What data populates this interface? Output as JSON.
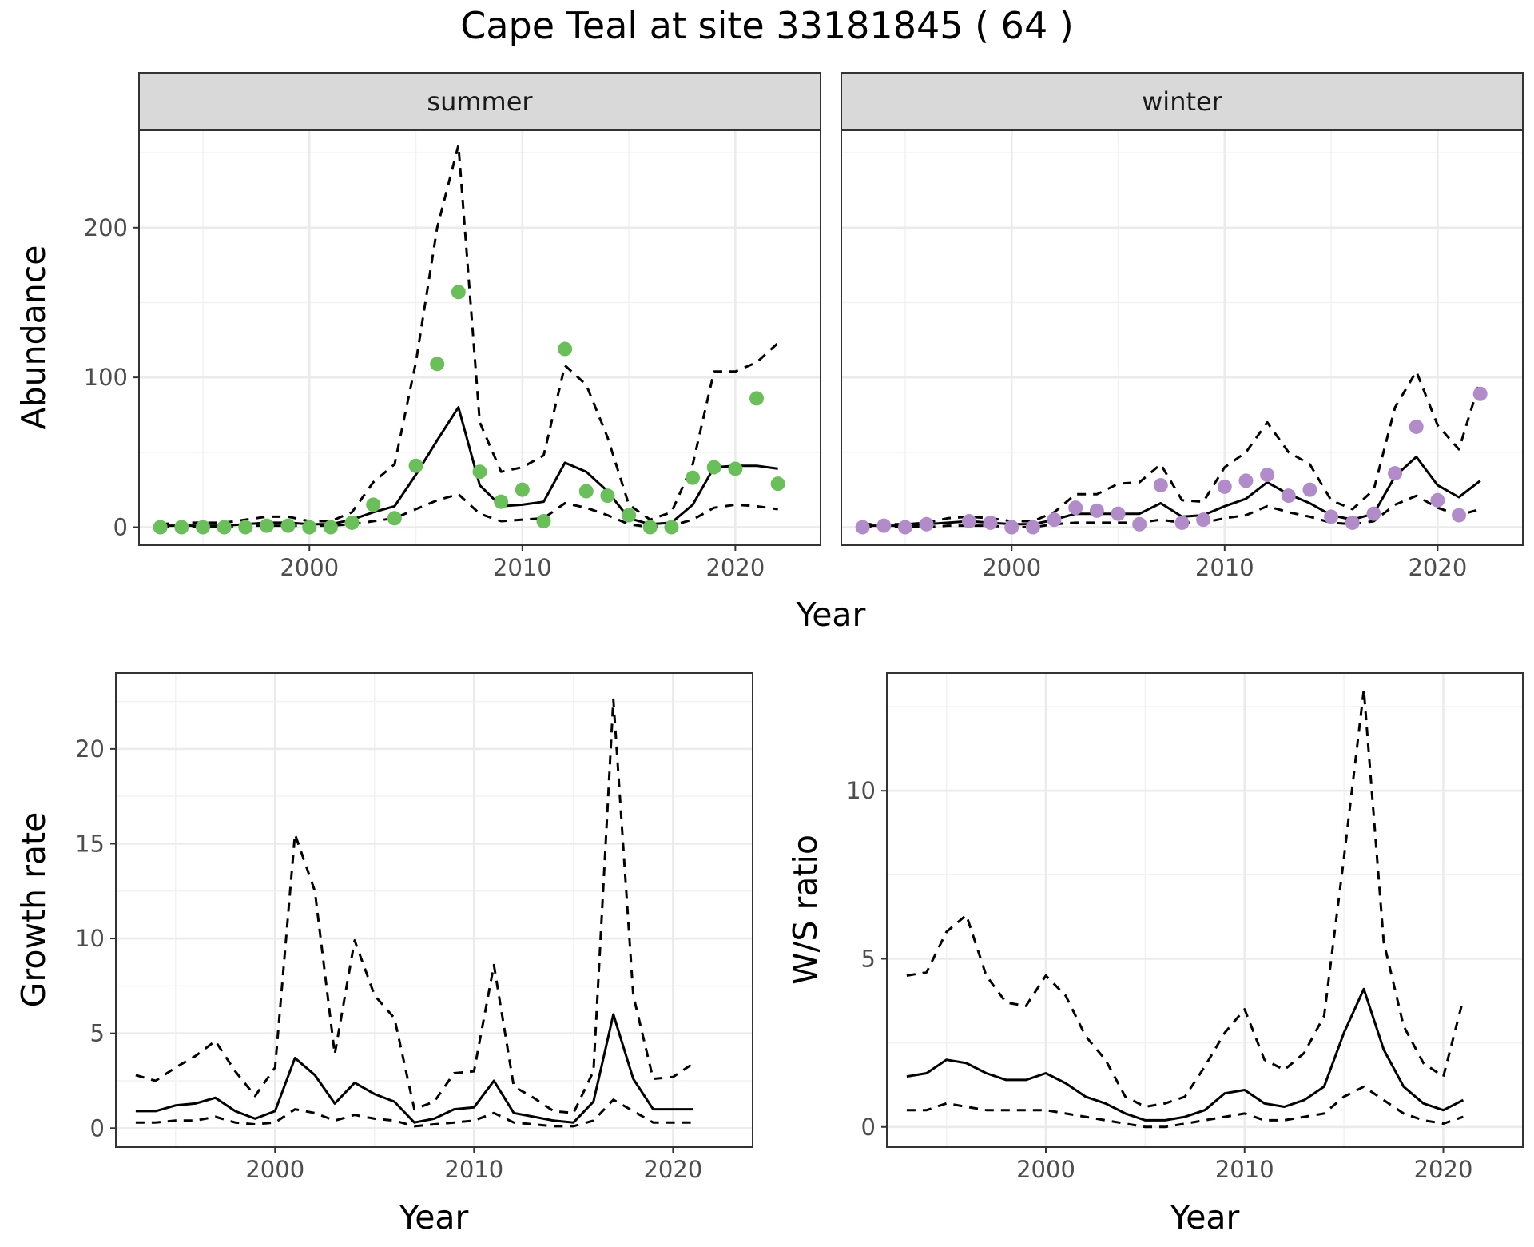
{
  "chart_data": [
    {
      "type": "line",
      "panel": "summer",
      "title": "Cape Teal at site 33181845 ( 64 )",
      "facet": "summer",
      "xlabel": "Year",
      "ylabel": "Abundance",
      "xlim": [
        1992,
        2024
      ],
      "ylim": [
        -12,
        265
      ],
      "xticks": [
        2000,
        2010,
        2020
      ],
      "yticks": [
        0,
        100,
        200
      ],
      "grid": true,
      "point_color": "#6abf5a",
      "x": [
        1993,
        1994,
        1995,
        1996,
        1997,
        1998,
        1999,
        2000,
        2001,
        2002,
        2003,
        2004,
        2005,
        2006,
        2007,
        2008,
        2009,
        2010,
        2011,
        2012,
        2013,
        2014,
        2015,
        2016,
        2017,
        2018,
        2019,
        2020,
        2021,
        2022
      ],
      "series": [
        {
          "role": "upper",
          "style": "dashed",
          "values": [
            2,
            3,
            3,
            3,
            5,
            7,
            7,
            4,
            4,
            10,
            30,
            42,
            110,
            200,
            255,
            70,
            37,
            40,
            48,
            108,
            95,
            60,
            15,
            5,
            10,
            42,
            104,
            104,
            110,
            123
          ]
        },
        {
          "role": "mean",
          "style": "solid",
          "values": [
            1,
            1,
            1,
            1,
            2,
            3,
            3,
            2,
            2,
            5,
            10,
            14,
            35,
            58,
            80,
            28,
            14,
            15,
            17,
            43,
            37,
            24,
            6,
            2,
            3,
            15,
            40,
            41,
            41,
            39
          ]
        },
        {
          "role": "lower",
          "style": "dashed",
          "values": [
            0,
            0,
            0,
            0,
            1,
            1,
            1,
            1,
            1,
            2,
            4,
            6,
            12,
            18,
            22,
            9,
            4,
            5,
            6,
            16,
            13,
            8,
            2,
            0,
            1,
            5,
            13,
            15,
            14,
            12
          ]
        },
        {
          "role": "observed",
          "style": "points",
          "values": [
            0,
            0,
            0,
            0,
            0,
            1,
            1,
            0,
            0,
            3,
            15,
            6,
            41,
            109,
            157,
            37,
            17,
            25,
            4,
            119,
            24,
            21,
            8,
            0,
            0,
            33,
            40,
            39,
            86,
            29
          ]
        }
      ]
    },
    {
      "type": "line",
      "panel": "winter",
      "facet": "winter",
      "xlabel": "Year",
      "ylabel": "Abundance",
      "xlim": [
        1992,
        2024
      ],
      "ylim": [
        -12,
        265
      ],
      "xticks": [
        2000,
        2010,
        2020
      ],
      "yticks": [
        0,
        100,
        200
      ],
      "grid": true,
      "point_color": "#b28cc8",
      "x": [
        1993,
        1994,
        1995,
        1996,
        1997,
        1998,
        1999,
        2000,
        2001,
        2002,
        2003,
        2004,
        2005,
        2006,
        2007,
        2008,
        2009,
        2010,
        2011,
        2012,
        2013,
        2014,
        2015,
        2016,
        2017,
        2018,
        2019,
        2020,
        2021,
        2022
      ],
      "series": [
        {
          "role": "upper",
          "style": "dashed",
          "values": [
            2,
            2,
            2,
            3,
            6,
            7,
            6,
            4,
            4,
            10,
            22,
            22,
            29,
            30,
            42,
            18,
            17,
            40,
            50,
            70,
            50,
            42,
            18,
            12,
            25,
            80,
            104,
            68,
            52,
            98
          ]
        },
        {
          "role": "mean",
          "style": "solid",
          "values": [
            1,
            1,
            1,
            2,
            3,
            4,
            3,
            2,
            2,
            5,
            9,
            9,
            9,
            9,
            16,
            7,
            8,
            14,
            19,
            30,
            22,
            16,
            8,
            5,
            9,
            34,
            47,
            28,
            20,
            31
          ]
        },
        {
          "role": "lower",
          "style": "dashed",
          "values": [
            0,
            0,
            0,
            0,
            1,
            1,
            1,
            0,
            0,
            2,
            3,
            3,
            3,
            3,
            5,
            3,
            3,
            6,
            8,
            14,
            10,
            7,
            3,
            2,
            4,
            15,
            21,
            13,
            8,
            12
          ]
        },
        {
          "role": "observed",
          "style": "points",
          "values": [
            0,
            1,
            0,
            2,
            null,
            4,
            3,
            0,
            0,
            5,
            13,
            11,
            9,
            2,
            28,
            3,
            5,
            27,
            31,
            35,
            21,
            25,
            7,
            3,
            9,
            36,
            67,
            18,
            8,
            89
          ]
        }
      ]
    },
    {
      "type": "line",
      "panel": "growth",
      "xlabel": "Year",
      "ylabel": "Growth rate",
      "xlim": [
        1992,
        2024
      ],
      "ylim": [
        -1,
        24
      ],
      "xticks": [
        2000,
        2010,
        2020
      ],
      "yticks": [
        0,
        5,
        10,
        15,
        20
      ],
      "grid": true,
      "x": [
        1993,
        1994,
        1995,
        1996,
        1997,
        1998,
        1999,
        2000,
        2001,
        2002,
        2003,
        2004,
        2005,
        2006,
        2007,
        2008,
        2009,
        2010,
        2011,
        2012,
        2013,
        2014,
        2015,
        2016,
        2017,
        2018,
        2019,
        2020,
        2021
      ],
      "series": [
        {
          "role": "upper",
          "style": "dashed",
          "values": [
            2.8,
            2.5,
            3.2,
            3.8,
            4.6,
            3.0,
            1.7,
            3.2,
            15.5,
            12.5,
            3.9,
            9.9,
            7.0,
            5.8,
            1.0,
            1.4,
            2.9,
            3.0,
            8.6,
            2.2,
            1.6,
            0.9,
            0.8,
            3.0,
            22.6,
            7.0,
            2.6,
            2.7,
            3.4
          ]
        },
        {
          "role": "mean",
          "style": "solid",
          "values": [
            0.9,
            0.9,
            1.2,
            1.3,
            1.6,
            0.9,
            0.5,
            0.9,
            3.7,
            2.8,
            1.3,
            2.4,
            1.8,
            1.4,
            0.3,
            0.5,
            1.0,
            1.1,
            2.5,
            0.8,
            0.6,
            0.4,
            0.3,
            1.4,
            6.0,
            2.6,
            1.0,
            1.0,
            1.0
          ]
        },
        {
          "role": "lower",
          "style": "dashed",
          "values": [
            0.3,
            0.3,
            0.4,
            0.4,
            0.6,
            0.3,
            0.2,
            0.3,
            1.0,
            0.8,
            0.4,
            0.7,
            0.5,
            0.4,
            0.1,
            0.2,
            0.3,
            0.4,
            0.8,
            0.3,
            0.2,
            0.1,
            0.1,
            0.4,
            1.5,
            0.9,
            0.3,
            0.3,
            0.3
          ]
        }
      ]
    },
    {
      "type": "line",
      "panel": "ratio",
      "xlabel": "Year",
      "ylabel": "W/S ratio",
      "xlim": [
        1992,
        2024
      ],
      "ylim": [
        -0.6,
        13.5
      ],
      "xticks": [
        2000,
        2010,
        2020
      ],
      "yticks": [
        0,
        5,
        10
      ],
      "grid": true,
      "x": [
        1993,
        1994,
        1995,
        1996,
        1997,
        1998,
        1999,
        2000,
        2001,
        2002,
        2003,
        2004,
        2005,
        2006,
        2007,
        2008,
        2009,
        2010,
        2011,
        2012,
        2013,
        2014,
        2015,
        2016,
        2017,
        2018,
        2019,
        2020,
        2021
      ],
      "series": [
        {
          "role": "upper",
          "style": "dashed",
          "values": [
            4.5,
            4.6,
            5.8,
            6.3,
            4.5,
            3.7,
            3.6,
            4.5,
            3.9,
            2.7,
            2.0,
            0.9,
            0.6,
            0.7,
            0.9,
            1.8,
            2.8,
            3.5,
            2.0,
            1.7,
            2.2,
            3.3,
            8.0,
            13.0,
            5.5,
            3.0,
            1.9,
            1.5,
            3.8
          ]
        },
        {
          "role": "mean",
          "style": "solid",
          "values": [
            1.5,
            1.6,
            2.0,
            1.9,
            1.6,
            1.4,
            1.4,
            1.6,
            1.3,
            0.9,
            0.7,
            0.4,
            0.2,
            0.2,
            0.3,
            0.5,
            1.0,
            1.1,
            0.7,
            0.6,
            0.8,
            1.2,
            2.8,
            4.1,
            2.3,
            1.2,
            0.7,
            0.5,
            0.8
          ]
        },
        {
          "role": "lower",
          "style": "dashed",
          "values": [
            0.5,
            0.5,
            0.7,
            0.6,
            0.5,
            0.5,
            0.5,
            0.5,
            0.4,
            0.3,
            0.2,
            0.1,
            0.0,
            0.0,
            0.1,
            0.2,
            0.3,
            0.4,
            0.2,
            0.2,
            0.3,
            0.4,
            0.9,
            1.2,
            0.8,
            0.4,
            0.2,
            0.1,
            0.3
          ]
        }
      ]
    }
  ]
}
